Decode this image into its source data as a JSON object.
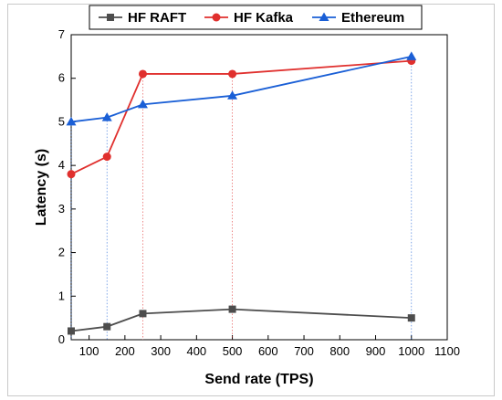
{
  "chart_data": {
    "type": "line",
    "title": "",
    "xlabel": "Send rate (TPS)",
    "ylabel": "Latency (s)",
    "xlim": [
      50,
      1100
    ],
    "ylim": [
      0,
      7
    ],
    "x_ticks": [
      "100",
      "200",
      "300",
      "400",
      "500",
      "600",
      "700",
      "800",
      "900",
      "1000",
      "1100"
    ],
    "y_ticks": [
      "0",
      "1",
      "2",
      "3",
      "4",
      "5",
      "6",
      "7"
    ],
    "grid": false,
    "dropdown_lines": true,
    "legend_position": "top",
    "series": [
      {
        "name": "HF RAFT",
        "color": "#4d4d4d",
        "marker": "square",
        "points": [
          [
            50,
            0.2
          ],
          [
            150,
            0.3
          ],
          [
            250,
            0.6
          ],
          [
            500,
            0.7
          ],
          [
            1000,
            0.5
          ]
        ]
      },
      {
        "name": "HF Kafka",
        "color": "#e0302e",
        "marker": "circle",
        "points": [
          [
            50,
            3.8
          ],
          [
            150,
            4.2
          ],
          [
            250,
            6.1
          ],
          [
            500,
            6.1
          ],
          [
            1000,
            6.4
          ]
        ]
      },
      {
        "name": "Ethereum",
        "color": "#1a5fd6",
        "marker": "triangle",
        "points": [
          [
            50,
            5.0
          ],
          [
            150,
            5.1
          ],
          [
            250,
            5.4
          ],
          [
            500,
            5.6
          ],
          [
            1000,
            6.5
          ]
        ]
      }
    ]
  }
}
